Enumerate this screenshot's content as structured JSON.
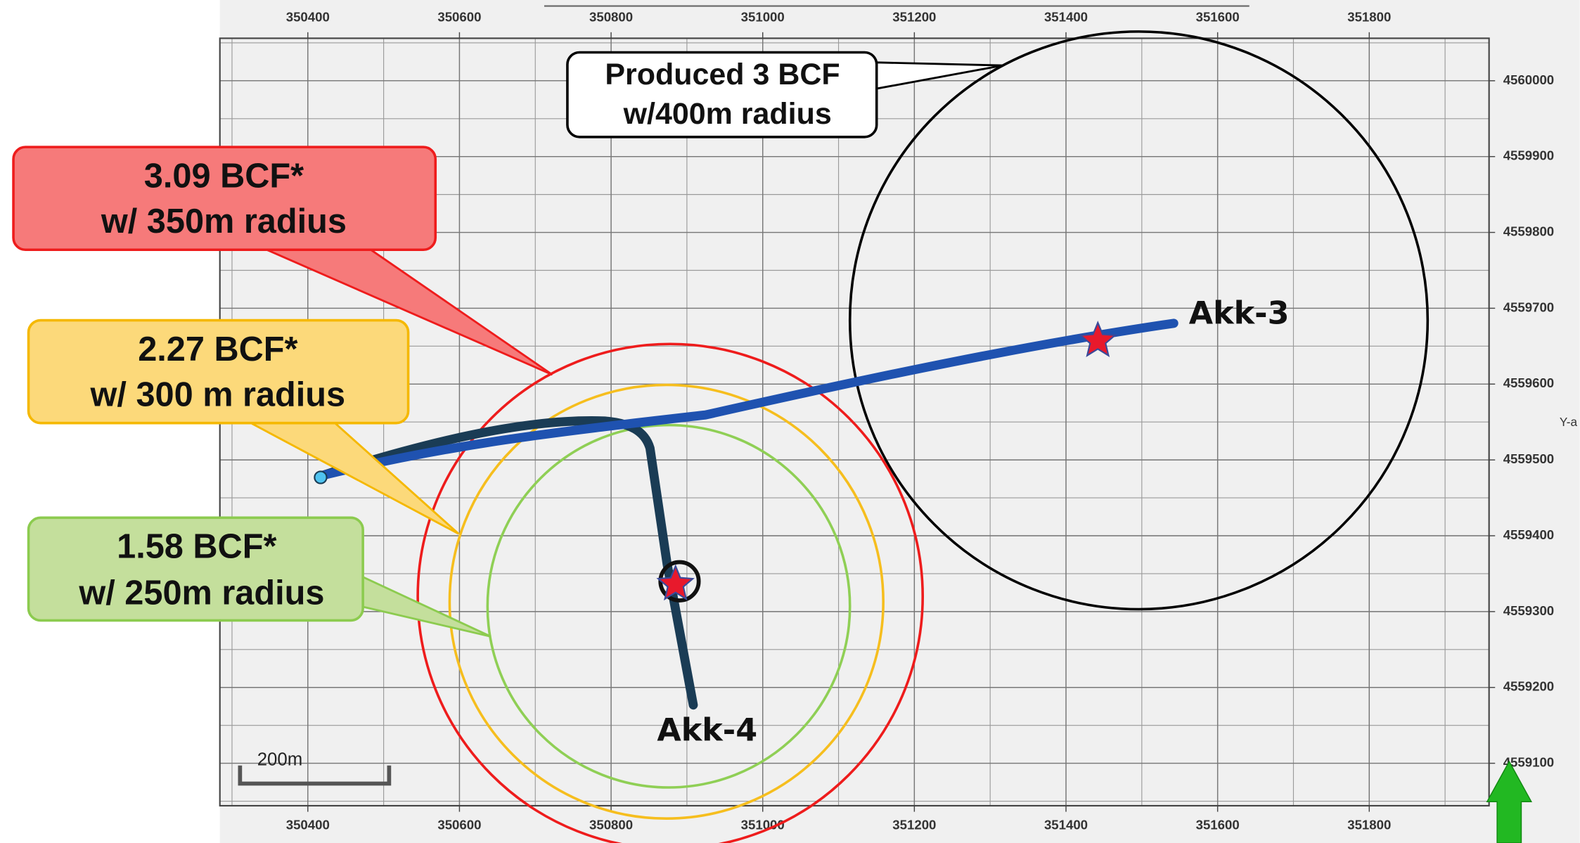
{
  "chart_data": {
    "type": "map",
    "xlim": [
      350284,
      351958
    ],
    "ylim": [
      4559044,
      4560056
    ],
    "xticks": [
      350400,
      350600,
      350800,
      351000,
      351200,
      351400,
      351600,
      351800
    ],
    "yticks": [
      4559100,
      4559200,
      4559300,
      4559400,
      4559500,
      4559600,
      4559700,
      4559800,
      4559900,
      4560000
    ],
    "y_axis_label": "Y-a",
    "grid": true,
    "circles": [
      {
        "cx": 351496,
        "cy": 4559684,
        "r": 381,
        "color": "#000000"
      },
      {
        "cx": 350878,
        "cy": 4559320,
        "r": 333,
        "color": "#ee1c1c"
      },
      {
        "cx": 350873,
        "cy": 4559313,
        "r": 286,
        "color": "#f6be1e"
      },
      {
        "cx": 350876,
        "cy": 4559307,
        "r": 239,
        "color": "#8fcf55"
      }
    ],
    "wells": [
      {
        "name": "Akk-3",
        "x": 351442,
        "y": 4559657
      },
      {
        "name": "Akk-4",
        "x": 350885,
        "y": 4559336
      }
    ],
    "callouts": [
      {
        "lines": [
          "Produced 3 BCF",
          "w/400m radius"
        ]
      },
      {
        "lines": [
          "3.09 BCF*",
          "w/ 350m radius"
        ]
      },
      {
        "lines": [
          "2.27 BCF*",
          "w/ 300 m radius"
        ]
      },
      {
        "lines": [
          "1.58 BCF*",
          "w/ 250m radius"
        ]
      }
    ],
    "scale_bar": "200m"
  }
}
